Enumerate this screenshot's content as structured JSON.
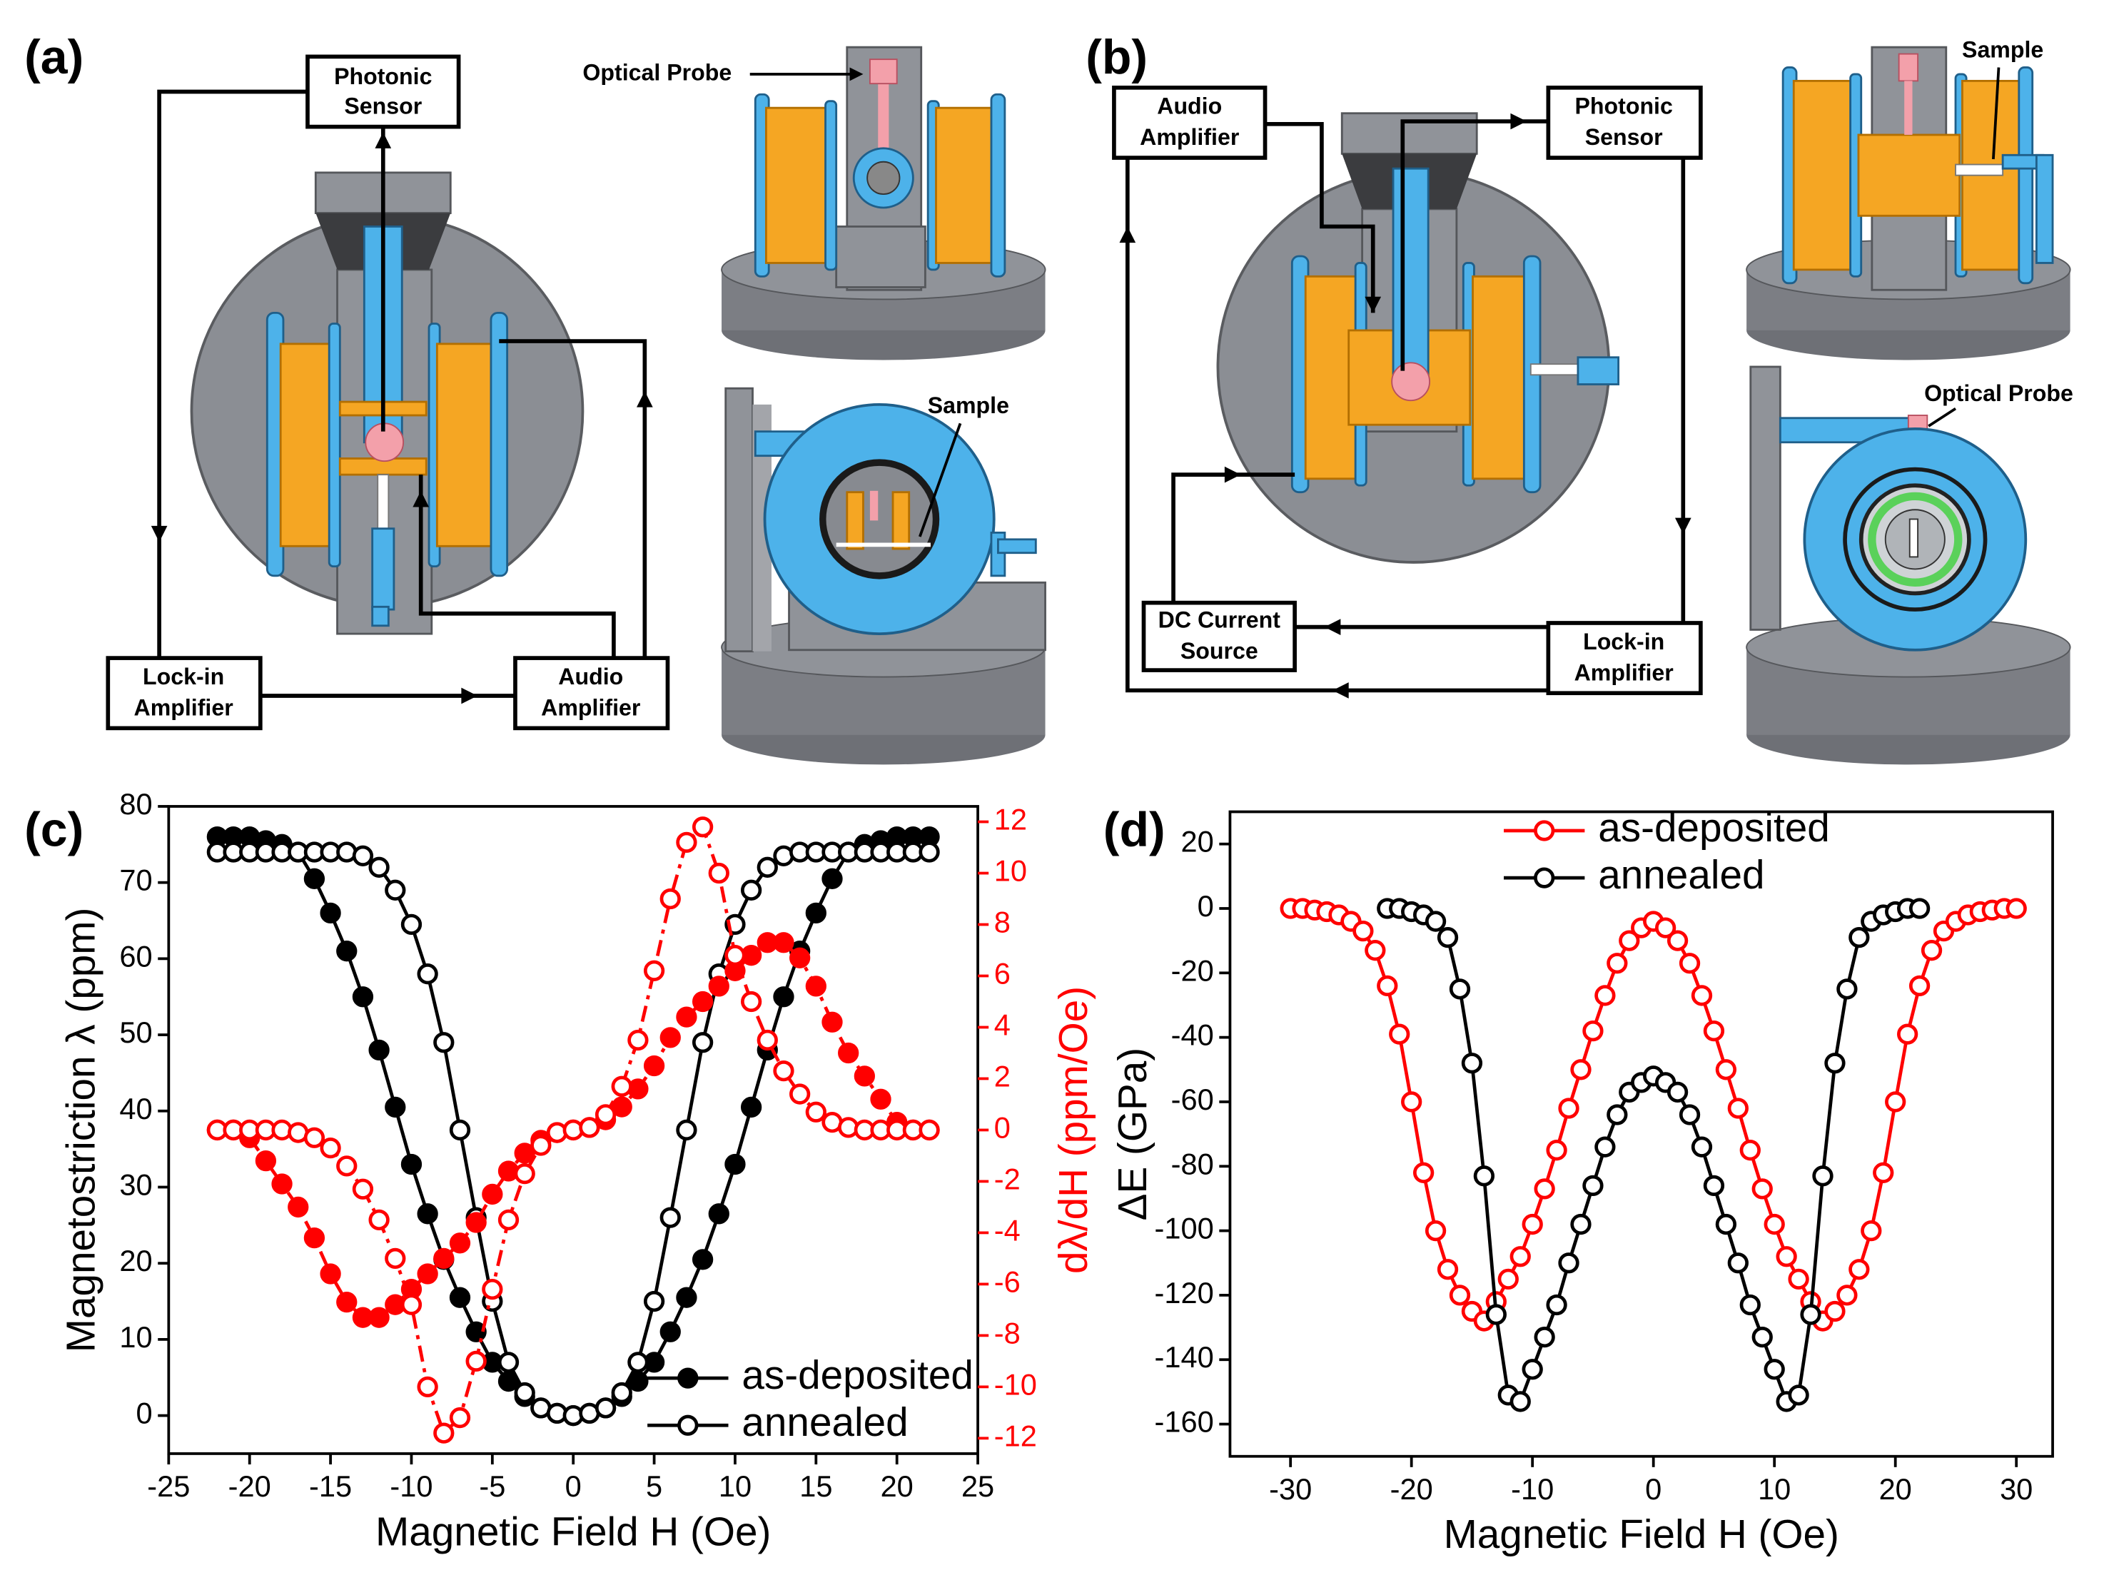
{
  "panel_labels": [
    "(a)",
    "(b)",
    "(c)",
    "(d)"
  ],
  "diagram_a": {
    "photonic_sensor": [
      "Photonic",
      "Sensor"
    ],
    "optical_probe": "Optical Probe",
    "sample": "Sample",
    "lock_in": [
      "Lock-in",
      "Amplifier"
    ],
    "audio": [
      "Audio",
      "Amplifier"
    ]
  },
  "diagram_b": {
    "audio": [
      "Audio",
      "Amplifier"
    ],
    "photonic_sensor": [
      "Photonic",
      "Sensor"
    ],
    "sample": "Sample",
    "optical_probe": "Optical Probe",
    "dc_source": [
      "DC Current",
      "Source"
    ],
    "lock_in": [
      "Lock-in",
      "Amplifier"
    ]
  },
  "chart_data": [
    {
      "type": "line",
      "x_label": "Magnetic Field H (Oe)",
      "y_label": "Magnetostriction λ (ppm)",
      "y2_label": "dλ/dH (ppm/Oe)",
      "y2_color": "#ff0000",
      "xlim": [
        -25,
        25
      ],
      "xticks": [
        -25,
        -20,
        -15,
        -10,
        -5,
        0,
        5,
        10,
        15,
        20,
        25
      ],
      "ylim": [
        -5,
        80
      ],
      "yticks": [
        0,
        10,
        20,
        30,
        40,
        50,
        60,
        70,
        80
      ],
      "y2lim": [
        -12.6,
        12.6
      ],
      "y2ticks": [
        -12,
        -10,
        -8,
        -6,
        -4,
        -2,
        0,
        2,
        4,
        6,
        8,
        10,
        12
      ],
      "legend": "lower right",
      "series": [
        {
          "name": "as-deposited",
          "color": "#000000",
          "marker": "filled",
          "linestyle": "solid",
          "x": [
            -22,
            -21,
            -20,
            -19,
            -18,
            -17,
            -16,
            -15,
            -14,
            -13,
            -12,
            -11,
            -10,
            -9,
            -8,
            -7,
            -6,
            -5,
            -4,
            -3,
            -2,
            -1,
            0,
            1,
            2,
            3,
            4,
            5,
            6,
            7,
            8,
            9,
            10,
            11,
            12,
            13,
            14,
            15,
            16,
            17,
            18,
            19,
            20,
            21,
            22
          ],
          "values": [
            76,
            76,
            76,
            75.5,
            75,
            74,
            70.5,
            66,
            61,
            55,
            48,
            40.5,
            33,
            26.5,
            20.5,
            15.5,
            11,
            7,
            4.5,
            2.5,
            1,
            0.3,
            0,
            0.3,
            1,
            2.5,
            4.5,
            7,
            11,
            15.5,
            20.5,
            26.5,
            33,
            40.5,
            48,
            55,
            61,
            66,
            70.5,
            74,
            75,
            75.5,
            76,
            76,
            76
          ]
        },
        {
          "name": "annealed",
          "color": "#000000",
          "marker": "open",
          "linestyle": "solid",
          "x": [
            -22,
            -21,
            -20,
            -19,
            -18,
            -17,
            -16,
            -15,
            -14,
            -13,
            -12,
            -11,
            -10,
            -9,
            -8,
            -7,
            -6,
            -5,
            -4,
            -3,
            -2,
            -1,
            0,
            1,
            2,
            3,
            4,
            5,
            6,
            7,
            8,
            9,
            10,
            11,
            12,
            13,
            14,
            15,
            16,
            17,
            18,
            19,
            20,
            21,
            22
          ],
          "values": [
            74,
            74,
            74,
            74,
            74,
            74,
            74,
            74,
            74,
            73.5,
            72,
            69,
            64.5,
            58,
            49,
            37.5,
            26,
            15,
            7,
            3,
            1,
            0.3,
            0,
            0.3,
            1,
            3,
            7,
            15,
            26,
            37.5,
            49,
            58,
            64.5,
            69,
            72,
            73.5,
            74,
            74,
            74,
            74,
            74,
            74,
            74,
            74,
            74
          ]
        },
        {
          "color": "#ff0000",
          "marker": "filled",
          "linestyle": "dashdot",
          "axis": "y2",
          "x": [
            -22,
            -21,
            -20,
            -19,
            -18,
            -17,
            -16,
            -15,
            -14,
            -13,
            -12,
            -11,
            -10,
            -9,
            -8,
            -7,
            -6,
            -5,
            -4,
            -3,
            -2,
            -1,
            0,
            1,
            2,
            3,
            4,
            5,
            6,
            7,
            8,
            9,
            10,
            11,
            12,
            13,
            14,
            15,
            16,
            17,
            18,
            19,
            20,
            21,
            22
          ],
          "values": [
            0,
            0,
            -0.3,
            -1.2,
            -2.1,
            -3,
            -4.2,
            -5.6,
            -6.7,
            -7.3,
            -7.3,
            -6.8,
            -6.2,
            -5.6,
            -5,
            -4.4,
            -3.6,
            -2.5,
            -1.6,
            -0.9,
            -0.4,
            -0.1,
            0,
            0.1,
            0.4,
            0.9,
            1.6,
            2.5,
            3.6,
            4.4,
            5,
            5.6,
            6.2,
            6.8,
            7.3,
            7.3,
            6.7,
            5.6,
            4.2,
            3,
            2.1,
            1.2,
            0.3,
            0,
            0
          ]
        },
        {
          "color": "#ff0000",
          "marker": "open",
          "linestyle": "dashdot",
          "axis": "y2",
          "x": [
            -22,
            -21,
            -20,
            -19,
            -18,
            -17,
            -16,
            -15,
            -14,
            -13,
            -12,
            -11,
            -10,
            -9,
            -8,
            -7,
            -6,
            -5,
            -4,
            -3,
            -2,
            -1,
            0,
            1,
            2,
            3,
            4,
            5,
            6,
            7,
            8,
            9,
            10,
            11,
            12,
            13,
            14,
            15,
            16,
            17,
            18,
            19,
            20,
            21,
            22
          ],
          "values": [
            0,
            0,
            0,
            0,
            0,
            -0.1,
            -0.3,
            -0.7,
            -1.4,
            -2.3,
            -3.5,
            -5,
            -6.8,
            -10,
            -11.8,
            -11.2,
            -9,
            -6.2,
            -3.5,
            -1.7,
            -0.6,
            -0.1,
            0,
            0.1,
            0.6,
            1.7,
            3.5,
            6.2,
            9,
            11.2,
            11.8,
            10,
            6.8,
            5,
            3.5,
            2.3,
            1.4,
            0.7,
            0.3,
            0.1,
            0,
            0,
            0,
            0,
            0
          ]
        }
      ]
    },
    {
      "type": "line",
      "x_label": "Magnetic Field H (Oe)",
      "y_label": "ΔE (GPa)",
      "xlim": [
        -35,
        33
      ],
      "xticks": [
        -30,
        -20,
        -10,
        0,
        10,
        20,
        30
      ],
      "ylim": [
        -170,
        30
      ],
      "yticks": [
        -160,
        -140,
        -120,
        -100,
        -80,
        -60,
        -40,
        -20,
        0,
        20
      ],
      "legend": "upper left",
      "series": [
        {
          "name": "as-deposited",
          "color": "#ff0000",
          "marker": "open",
          "linestyle": "solid",
          "x": [
            -30,
            -29,
            -28,
            -27,
            -26,
            -25,
            -24,
            -23,
            -22,
            -21,
            -20,
            -19,
            -18,
            -17,
            -16,
            -15,
            -14,
            -13,
            -12,
            -11,
            -10,
            -9,
            -8,
            -7,
            -6,
            -5,
            -4,
            -3,
            -2,
            -1,
            0,
            1,
            2,
            3,
            4,
            5,
            6,
            7,
            8,
            9,
            10,
            11,
            12,
            13,
            14,
            15,
            16,
            17,
            18,
            19,
            20,
            21,
            22,
            23,
            24,
            25,
            26,
            27,
            28,
            29,
            30
          ],
          "values": [
            0,
            0,
            -0.5,
            -1,
            -2,
            -4,
            -7,
            -13,
            -24,
            -39,
            -60,
            -82,
            -100,
            -112,
            -120,
            -125,
            -128,
            -122,
            -115,
            -108,
            -98,
            -87,
            -75,
            -62,
            -50,
            -38,
            -27,
            -17,
            -10,
            -6,
            -4,
            -6,
            -10,
            -17,
            -27,
            -38,
            -50,
            -62,
            -75,
            -87,
            -98,
            -108,
            -115,
            -122,
            -128,
            -125,
            -120,
            -112,
            -100,
            -82,
            -60,
            -39,
            -24,
            -13,
            -7,
            -4,
            -2,
            -1,
            -0.5,
            0,
            0
          ]
        },
        {
          "name": "annealed",
          "color": "#000000",
          "marker": "open",
          "linestyle": "solid",
          "x": [
            -22,
            -21,
            -20,
            -19,
            -18,
            -17,
            -16,
            -15,
            -14,
            -13,
            -12,
            -11,
            -10,
            -9,
            -8,
            -7,
            -6,
            -5,
            -4,
            -3,
            -2,
            -1,
            0,
            1,
            2,
            3,
            4,
            5,
            6,
            7,
            8,
            9,
            10,
            11,
            12,
            13,
            14,
            15,
            16,
            17,
            18,
            19,
            20,
            21,
            22
          ],
          "values": [
            0,
            0,
            -1,
            -2,
            -4,
            -9,
            -25,
            -48,
            -83,
            -126,
            -151,
            -153,
            -143,
            -133,
            -123,
            -110,
            -98,
            -86,
            -74,
            -64,
            -57,
            -54,
            -52,
            -54,
            -57,
            -64,
            -74,
            -86,
            -98,
            -110,
            -123,
            -133,
            -143,
            -153,
            -151,
            -126,
            -83,
            -48,
            -25,
            -9,
            -4,
            -2,
            -1,
            0,
            0
          ]
        }
      ]
    }
  ]
}
